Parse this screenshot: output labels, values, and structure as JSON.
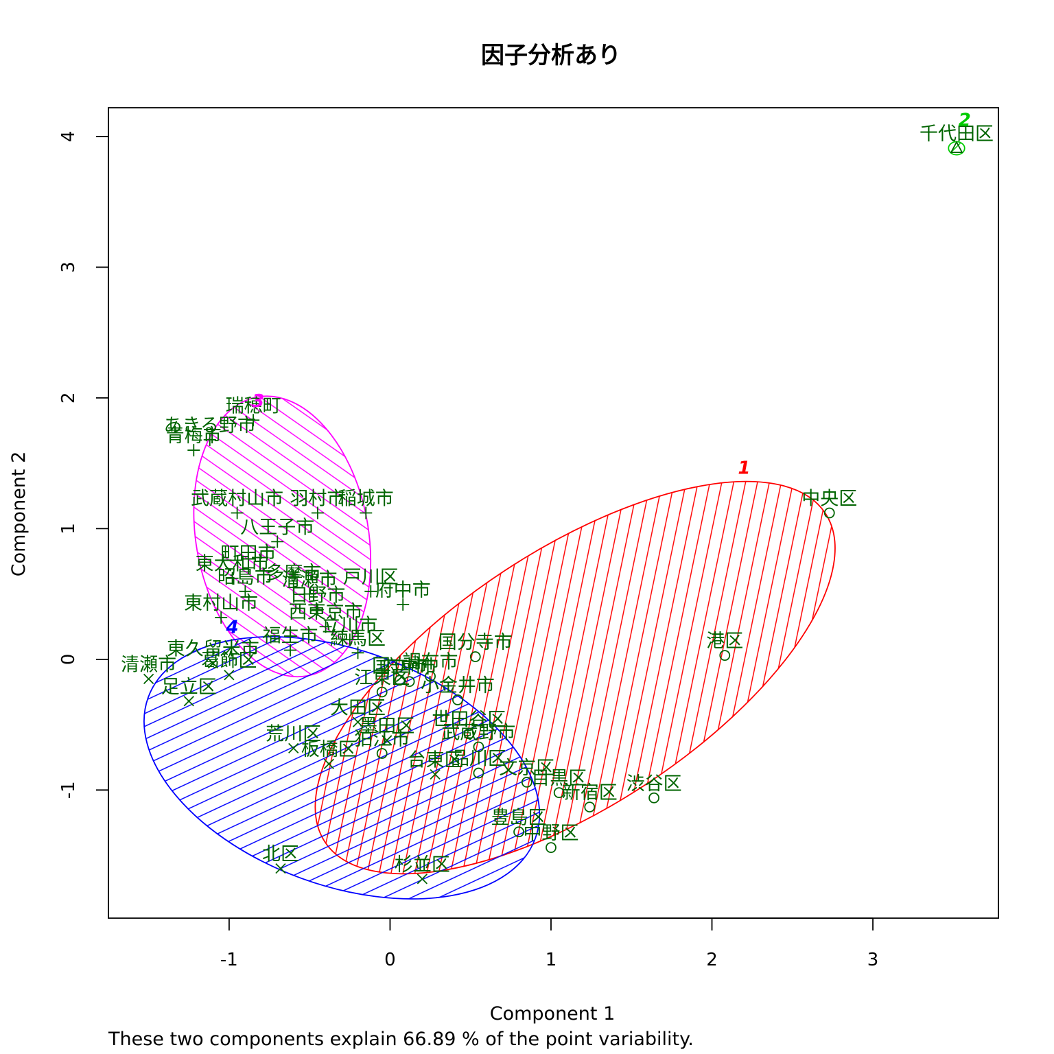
{
  "chart_data": {
    "type": "scatter",
    "title": "因子分析あり",
    "xlabel": "Component 1",
    "ylabel": "Component 2",
    "caption": "These two components explain 66.89 % of the point variability.",
    "xlim": [
      -1.75,
      3.78
    ],
    "ylim": [
      -1.98,
      4.22
    ],
    "xticks": [
      -1,
      0,
      1,
      2,
      3
    ],
    "yticks": [
      -1,
      0,
      1,
      2,
      3,
      4
    ],
    "point_color": "#006400",
    "clusters": [
      {
        "id": "1",
        "label": "1",
        "color": "#ff0000",
        "marker": "o",
        "ellipse": {
          "cx": 1.15,
          "cy": -0.14,
          "a": 1.86,
          "b": 0.98,
          "angle_deg": 33.3
        },
        "label_pos": [
          2.2,
          1.42
        ]
      },
      {
        "id": "2",
        "label": "2",
        "color": "#00cc00",
        "marker": "triangle",
        "ellipse": {
          "cx": 3.52,
          "cy": 3.91,
          "a": 0.05,
          "b": 0.05,
          "angle_deg": 0
        },
        "label_pos": [
          3.57,
          4.08
        ]
      },
      {
        "id": "3",
        "label": "3",
        "color": "#ff00ff",
        "marker": "+",
        "ellipse": {
          "cx": -0.67,
          "cy": 0.94,
          "a": 0.88,
          "b": 0.66,
          "angle_deg": -80
        },
        "label_pos": [
          -0.82,
          1.93
        ]
      },
      {
        "id": "4",
        "label": "4",
        "color": "#0000ff",
        "marker": "x",
        "ellipse": {
          "cx": -0.3,
          "cy": -0.83,
          "a": 1.28,
          "b": 0.9,
          "angle_deg": -20
        },
        "label_pos": [
          -0.98,
          0.2
        ]
      }
    ],
    "points": [
      {
        "label": "千代田区",
        "x": 3.52,
        "y": 3.91,
        "cluster": "2"
      },
      {
        "label": "中央区",
        "x": 2.73,
        "y": 1.12,
        "cluster": "1"
      },
      {
        "label": "港区",
        "x": 2.08,
        "y": 0.03,
        "cluster": "1"
      },
      {
        "label": "国分寺市",
        "x": 0.53,
        "y": 0.02,
        "cluster": "1"
      },
      {
        "label": "調布市",
        "x": 0.25,
        "y": -0.13,
        "cluster": "1"
      },
      {
        "label": "府中市",
        "x": 0.12,
        "y": -0.17,
        "cluster": "1"
      },
      {
        "label": "国立市",
        "x": 0.06,
        "y": -0.16,
        "cluster": "1"
      },
      {
        "label": "江東区",
        "x": -0.05,
        "y": -0.25,
        "cluster": "1"
      },
      {
        "label": "小金井市",
        "x": 0.42,
        "y": -0.31,
        "cluster": "1"
      },
      {
        "label": "世田谷区",
        "x": 0.49,
        "y": -0.57,
        "cluster": "1"
      },
      {
        "label": "武蔵野市",
        "x": 0.55,
        "y": -0.67,
        "cluster": "1"
      },
      {
        "label": "品川区",
        "x": 0.55,
        "y": -0.87,
        "cluster": "1"
      },
      {
        "label": "狛江市",
        "x": -0.05,
        "y": -0.72,
        "cluster": "1"
      },
      {
        "label": "文京区",
        "x": 0.85,
        "y": -0.94,
        "cluster": "1"
      },
      {
        "label": "目黒区",
        "x": 1.05,
        "y": -1.02,
        "cluster": "1"
      },
      {
        "label": "新宿区",
        "x": 1.24,
        "y": -1.13,
        "cluster": "1"
      },
      {
        "label": "渋谷区",
        "x": 1.64,
        "y": -1.06,
        "cluster": "1"
      },
      {
        "label": "豊島区",
        "x": 0.8,
        "y": -1.32,
        "cluster": "1"
      },
      {
        "label": "中野区",
        "x": 1.0,
        "y": -1.44,
        "cluster": "1"
      },
      {
        "label": "瑞穂町",
        "x": -0.85,
        "y": 1.83,
        "cluster": "3"
      },
      {
        "label": "あきる野市",
        "x": -1.12,
        "y": 1.68,
        "cluster": "3"
      },
      {
        "label": "青梅市",
        "x": -1.22,
        "y": 1.6,
        "cluster": "3"
      },
      {
        "label": "武蔵村山市",
        "x": -0.95,
        "y": 1.12,
        "cluster": "3"
      },
      {
        "label": "羽村市",
        "x": -0.45,
        "y": 1.12,
        "cluster": "3"
      },
      {
        "label": "稲城市",
        "x": -0.15,
        "y": 1.12,
        "cluster": "3"
      },
      {
        "label": "八王子市",
        "x": -0.7,
        "y": 0.9,
        "cluster": "3"
      },
      {
        "label": "町田市",
        "x": -0.88,
        "y": 0.7,
        "cluster": "3"
      },
      {
        "label": "東大和市",
        "x": -0.98,
        "y": 0.62,
        "cluster": "3"
      },
      {
        "label": "多摩市",
        "x": -0.6,
        "y": 0.55,
        "cluster": "3"
      },
      {
        "label": "昭島市",
        "x": -0.9,
        "y": 0.52,
        "cluster": "3"
      },
      {
        "label": "清瀬市",
        "x": -0.5,
        "y": 0.5,
        "cluster": "3"
      },
      {
        "label": "戸川区",
        "x": -0.12,
        "y": 0.52,
        "cluster": "3"
      },
      {
        "label": "府中市",
        "x": 0.08,
        "y": 0.42,
        "cluster": "3"
      },
      {
        "label": "日野市",
        "x": -0.45,
        "y": 0.38,
        "cluster": "3"
      },
      {
        "label": "東村山市",
        "x": -1.05,
        "y": 0.32,
        "cluster": "3"
      },
      {
        "label": "西東京市",
        "x": -0.4,
        "y": 0.25,
        "cluster": "3"
      },
      {
        "label": "立川市",
        "x": -0.25,
        "y": 0.15,
        "cluster": "3"
      },
      {
        "label": "福生市",
        "x": -0.62,
        "y": 0.07,
        "cluster": "3"
      },
      {
        "label": "練馬区",
        "x": -0.2,
        "y": 0.05,
        "cluster": "3"
      },
      {
        "label": "東久留米市",
        "x": -1.1,
        "y": -0.03,
        "cluster": "4"
      },
      {
        "label": "清瀬市",
        "x": -1.5,
        "y": -0.15,
        "cluster": "4"
      },
      {
        "label": "葛飾区",
        "x": -1.0,
        "y": -0.12,
        "cluster": "4"
      },
      {
        "label": "足立区",
        "x": -1.25,
        "y": -0.32,
        "cluster": "4"
      },
      {
        "label": "大田区",
        "x": -0.2,
        "y": -0.48,
        "cluster": "4"
      },
      {
        "label": "墨田区",
        "x": -0.02,
        "y": -0.62,
        "cluster": "4"
      },
      {
        "label": "荒川区",
        "x": -0.6,
        "y": -0.68,
        "cluster": "4"
      },
      {
        "label": "板橋区",
        "x": -0.38,
        "y": -0.8,
        "cluster": "4"
      },
      {
        "label": "台東区",
        "x": 0.28,
        "y": -0.88,
        "cluster": "4"
      },
      {
        "label": "北区",
        "x": -0.68,
        "y": -1.6,
        "cluster": "4"
      },
      {
        "label": "杉並区",
        "x": 0.2,
        "y": -1.68,
        "cluster": "4"
      }
    ]
  }
}
